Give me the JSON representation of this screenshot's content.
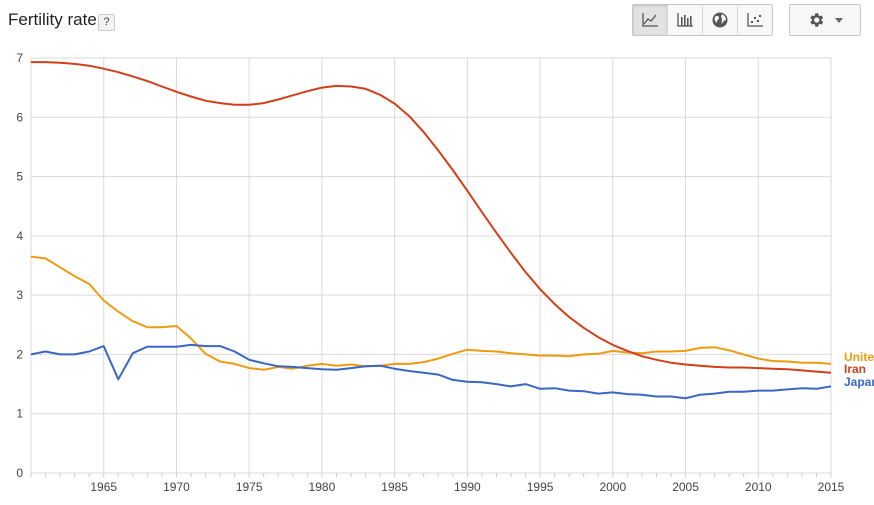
{
  "header": {
    "title": "Fertility rate",
    "help_label": "?",
    "chart_type_buttons": [
      {
        "icon": "line-chart-icon",
        "active": true
      },
      {
        "icon": "bar-chart-icon",
        "active": false
      },
      {
        "icon": "globe-icon",
        "active": false
      },
      {
        "icon": "scatter-chart-icon",
        "active": false
      }
    ],
    "settings_icon": "gear-icon"
  },
  "chart_data": {
    "type": "line",
    "title": "Fertility rate",
    "xlabel": "",
    "ylabel": "",
    "xlim": [
      1960,
      2015
    ],
    "ylim": [
      0,
      7
    ],
    "x_ticks": [
      1965,
      1970,
      1975,
      1980,
      1985,
      1990,
      1995,
      2000,
      2005,
      2010,
      2015
    ],
    "y_ticks": [
      0,
      1,
      2,
      3,
      4,
      5,
      6,
      7
    ],
    "grid": true,
    "legend_position": "right",
    "x": [
      1960,
      1961,
      1962,
      1963,
      1964,
      1965,
      1966,
      1967,
      1968,
      1969,
      1970,
      1971,
      1972,
      1973,
      1974,
      1975,
      1976,
      1977,
      1978,
      1979,
      1980,
      1981,
      1982,
      1983,
      1984,
      1985,
      1986,
      1987,
      1988,
      1989,
      1990,
      1991,
      1992,
      1993,
      1994,
      1995,
      1996,
      1997,
      1998,
      1999,
      2000,
      2001,
      2002,
      2003,
      2004,
      2005,
      2006,
      2007,
      2008,
      2009,
      2010,
      2011,
      2012,
      2013,
      2014,
      2015
    ],
    "series": [
      {
        "name": "United States",
        "legend_label": "Unite",
        "color": "#f09a12",
        "values": [
          3.65,
          3.62,
          3.47,
          3.32,
          3.19,
          2.91,
          2.72,
          2.56,
          2.46,
          2.46,
          2.48,
          2.27,
          2.01,
          1.88,
          1.84,
          1.77,
          1.74,
          1.79,
          1.76,
          1.81,
          1.84,
          1.81,
          1.83,
          1.8,
          1.81,
          1.84,
          1.84,
          1.87,
          1.93,
          2.01,
          2.08,
          2.06,
          2.05,
          2.02,
          2.0,
          1.98,
          1.98,
          1.97,
          2.0,
          2.01,
          2.06,
          2.03,
          2.02,
          2.05,
          2.05,
          2.06,
          2.11,
          2.12,
          2.07,
          2.0,
          1.93,
          1.89,
          1.88,
          1.86,
          1.86,
          1.84
        ]
      },
      {
        "name": "Iran",
        "legend_label": "Iran",
        "color": "#d2401b",
        "values": [
          6.93,
          6.93,
          6.92,
          6.9,
          6.87,
          6.82,
          6.76,
          6.69,
          6.61,
          6.52,
          6.43,
          6.35,
          6.28,
          6.24,
          6.21,
          6.21,
          6.24,
          6.3,
          6.37,
          6.44,
          6.5,
          6.53,
          6.52,
          6.48,
          6.38,
          6.23,
          6.02,
          5.75,
          5.44,
          5.11,
          4.76,
          4.4,
          4.05,
          3.71,
          3.39,
          3.1,
          2.85,
          2.63,
          2.45,
          2.29,
          2.16,
          2.06,
          1.97,
          1.91,
          1.86,
          1.83,
          1.81,
          1.79,
          1.78,
          1.78,
          1.77,
          1.76,
          1.75,
          1.73,
          1.71,
          1.69
        ]
      },
      {
        "name": "Japan",
        "legend_label": "Japan",
        "color": "#3a66c4",
        "values": [
          2.0,
          2.05,
          2.0,
          2.0,
          2.05,
          2.14,
          1.58,
          2.02,
          2.13,
          2.13,
          2.13,
          2.16,
          2.14,
          2.14,
          2.05,
          1.91,
          1.85,
          1.8,
          1.79,
          1.77,
          1.75,
          1.74,
          1.77,
          1.8,
          1.81,
          1.76,
          1.72,
          1.69,
          1.66,
          1.57,
          1.54,
          1.53,
          1.5,
          1.46,
          1.5,
          1.42,
          1.43,
          1.39,
          1.38,
          1.34,
          1.36,
          1.33,
          1.32,
          1.29,
          1.29,
          1.26,
          1.32,
          1.34,
          1.37,
          1.37,
          1.39,
          1.39,
          1.41,
          1.43,
          1.42,
          1.46
        ]
      }
    ]
  }
}
